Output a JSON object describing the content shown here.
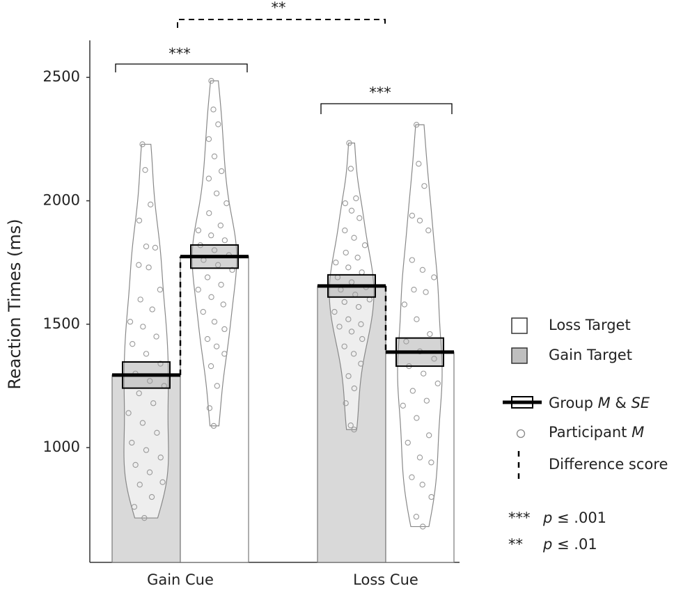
{
  "chart_data": {
    "type": "bar",
    "ylabel": "Reaction Times (ms)",
    "categories": [
      "Gain Cue",
      "Loss Cue"
    ],
    "series": [
      {
        "name": "Gain Target",
        "color": "#d9d9d9",
        "values": [
          1294,
          1655
        ],
        "se": [
          53,
          45
        ],
        "points": [
          [
            2229,
            2125,
            1985,
            1920,
            1815,
            1810,
            1740,
            1730,
            1640,
            1600,
            1560,
            1510,
            1490,
            1450,
            1420,
            1380,
            1340,
            1300,
            1270,
            1250,
            1220,
            1180,
            1140,
            1100,
            1060,
            1020,
            990,
            960,
            930,
            900,
            860,
            850,
            800,
            760,
            715
          ],
          [
            2234,
            2130,
            2010,
            1990,
            1960,
            1930,
            1880,
            1850,
            1820,
            1790,
            1770,
            1750,
            1730,
            1710,
            1690,
            1670,
            1650,
            1640,
            1620,
            1600,
            1590,
            1570,
            1550,
            1520,
            1500,
            1490,
            1470,
            1440,
            1410,
            1380,
            1340,
            1290,
            1240,
            1180,
            1090,
            1073
          ]
        ]
      },
      {
        "name": "Loss Target",
        "color": "#ffffff",
        "values": [
          1774,
          1387
        ],
        "se": [
          47,
          57
        ],
        "points": [
          [
            2486,
            2370,
            2310,
            2250,
            2180,
            2120,
            2090,
            2030,
            1990,
            1950,
            1900,
            1880,
            1860,
            1840,
            1820,
            1800,
            1780,
            1760,
            1740,
            1720,
            1690,
            1660,
            1640,
            1610,
            1580,
            1550,
            1510,
            1480,
            1440,
            1410,
            1380,
            1330,
            1250,
            1160,
            1088
          ],
          [
            2308,
            2150,
            2060,
            1940,
            1920,
            1880,
            1760,
            1720,
            1690,
            1640,
            1630,
            1580,
            1520,
            1460,
            1430,
            1390,
            1360,
            1330,
            1300,
            1260,
            1230,
            1190,
            1170,
            1120,
            1050,
            1020,
            960,
            940,
            880,
            850,
            800,
            720,
            680
          ]
        ]
      }
    ],
    "ylim": [
      535,
      2650
    ],
    "yticks": [
      1000,
      1500,
      2000,
      2500
    ],
    "annotations": [
      "***",
      "**",
      "***"
    ],
    "legend_group": [
      "Group ",
      "M",
      " & ",
      "SE"
    ],
    "legend_participant": [
      "Participant ",
      "M"
    ],
    "legend_difference": "Difference score",
    "p_levels": [
      {
        "stars": "***",
        "label": [
          "p",
          " ≤ .001"
        ]
      },
      {
        "stars": "**",
        "label": [
          "p",
          " ≤ .01"
        ]
      }
    ]
  }
}
